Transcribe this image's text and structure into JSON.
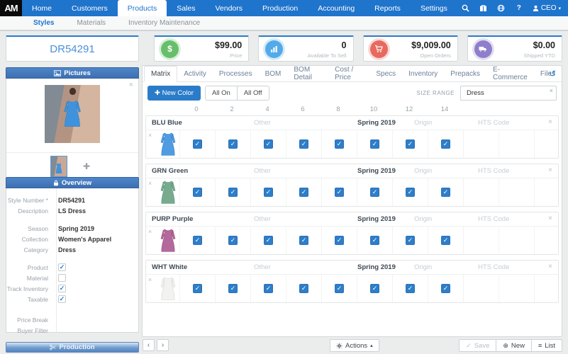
{
  "nav": {
    "logo": "AM",
    "items": [
      "Home",
      "Customers",
      "Products",
      "Sales",
      "Vendors",
      "Production",
      "Accounting",
      "Reports",
      "Settings"
    ],
    "active": "Products",
    "help_label": "?",
    "user_label": "CEO",
    "nav_color": "#1f74cc"
  },
  "subnav": {
    "items": [
      "Styles",
      "Materials",
      "Inventory Maintenance"
    ],
    "active": "Styles"
  },
  "header": {
    "style_number": "DR54291",
    "stat_cards": [
      {
        "value": "$99.00",
        "label": "Price",
        "icon": "dollar-icon",
        "color": "#67bf6b"
      },
      {
        "value": "0",
        "label": "Available To Sell",
        "icon": "chart-icon",
        "color": "#53aae8"
      },
      {
        "value": "$9,009.00",
        "label": "Open Orders",
        "icon": "cart-icon",
        "color": "#e76a5f"
      },
      {
        "value": "$0.00",
        "label": "Shipped YTD",
        "icon": "truck-icon",
        "color": "#8f7ecb"
      }
    ]
  },
  "pictures": {
    "title": "Pictures"
  },
  "overview": {
    "title": "Overview",
    "fields": [
      {
        "label": "Style Number *",
        "value": "DR54291"
      },
      {
        "label": "Description",
        "value": "LS Dress"
      },
      {
        "label": "Season",
        "value": "Spring 2019"
      },
      {
        "label": "Collection",
        "value": "Women's Apparel"
      },
      {
        "label": "Category",
        "value": "Dress"
      }
    ],
    "checkboxes": [
      {
        "label": "Product",
        "checked": true,
        "mark": "✓"
      },
      {
        "label": "Material",
        "checked": false,
        "mark": ""
      },
      {
        "label": "Track Inventory",
        "checked": true,
        "mark": "✓"
      },
      {
        "label": "Taxable",
        "checked": true,
        "mark": "✓"
      }
    ],
    "empty_fields": [
      {
        "label": "Price Break"
      },
      {
        "label": "Buyer Filter"
      }
    ]
  },
  "production_panel": {
    "title": "Production"
  },
  "main": {
    "tabs": [
      "Matrix",
      "Activity",
      "Processes",
      "BOM",
      "BOM Detail",
      "Cost / Price",
      "Specs",
      "Inventory",
      "Prepacks",
      "E-Commerce",
      "Files"
    ],
    "active_tab": "Matrix",
    "toolbar": {
      "new_color": "New Color",
      "all_on": "All On",
      "all_off": "All Off",
      "size_range_label": "SIZE RANGE",
      "size_range_value": "Dress"
    },
    "matrix": {
      "sizes": [
        "0",
        "2",
        "4",
        "6",
        "8",
        "10",
        "12",
        "14"
      ],
      "checkbox_color": "#2e7ec9",
      "all_checked": true,
      "rows": [
        {
          "name": "BLU Blue",
          "other": "Other",
          "season": "Spring 2019",
          "origin": "Origin",
          "hts": "HTS Code",
          "dress_color": "#4f9ce2",
          "dress_edge": "#3a80c4"
        },
        {
          "name": "GRN Green",
          "other": "Other",
          "season": "Spring 2019",
          "origin": "Origin",
          "hts": "HTS Code",
          "dress_color": "#78ab8e",
          "dress_edge": "#5d9478"
        },
        {
          "name": "PURP Purple",
          "other": "Other",
          "season": "Spring 2019",
          "origin": "Origin",
          "hts": "HTS Code",
          "dress_color": "#b4689c",
          "dress_edge": "#96537f"
        },
        {
          "name": "WHT White",
          "other": "Other",
          "season": "Spring 2019",
          "origin": "Origin",
          "hts": "HTS Code",
          "dress_color": "#f2f2f0",
          "dress_edge": "#d8d8d4"
        }
      ]
    }
  },
  "footer": {
    "actions": "Actions",
    "save": "Save",
    "new": "New",
    "list": "List"
  }
}
